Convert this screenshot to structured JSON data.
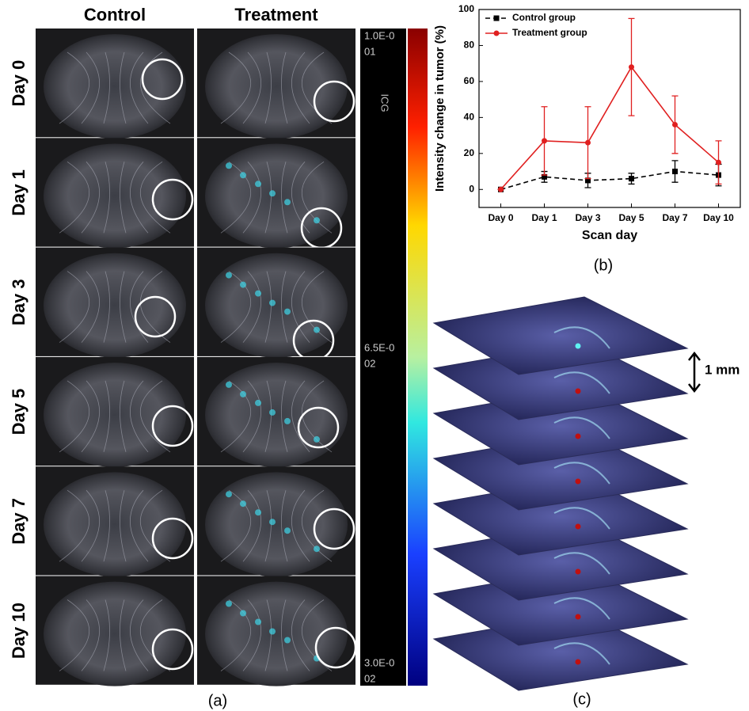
{
  "panel_a": {
    "columns": [
      "Control",
      "Treatment"
    ],
    "rows": [
      "Day 0",
      "Day 1",
      "Day 3",
      "Day 5",
      "Day 7",
      "Day 10"
    ],
    "colorbar_name": "ICG",
    "colorbar_labels": [
      [
        "1.0E-0",
        "01"
      ],
      [
        "6.5E-0",
        "02"
      ],
      [
        "3.0E-0",
        "02"
      ]
    ],
    "caption": "(a)"
  },
  "chart_data": {
    "type": "line",
    "categories": [
      "Day 0",
      "Day 1",
      "Day 3",
      "Day 5",
      "Day 7",
      "Day 10"
    ],
    "series": [
      {
        "name": "Control group",
        "color": "#000000",
        "dashed": true,
        "marker": "square",
        "values": [
          0,
          7,
          5,
          6,
          10,
          8
        ],
        "errors": [
          0,
          3,
          4,
          3,
          6,
          6
        ]
      },
      {
        "name": "Treatment group",
        "color": "#e02020",
        "dashed": false,
        "marker": "circle",
        "values": [
          0,
          27,
          26,
          68,
          36,
          15
        ],
        "errors": [
          0,
          19,
          20,
          27,
          16,
          12
        ]
      }
    ],
    "ylim": [
      -10,
      100
    ],
    "yticks": [
      0,
      20,
      40,
      60,
      80,
      100
    ],
    "xlabel": "Scan day",
    "ylabel": "Intensity change in tumor (%)",
    "legend": "upper-left",
    "caption": "(b)"
  },
  "panel_c": {
    "scale_label": "1 mm",
    "caption": "(c)"
  }
}
